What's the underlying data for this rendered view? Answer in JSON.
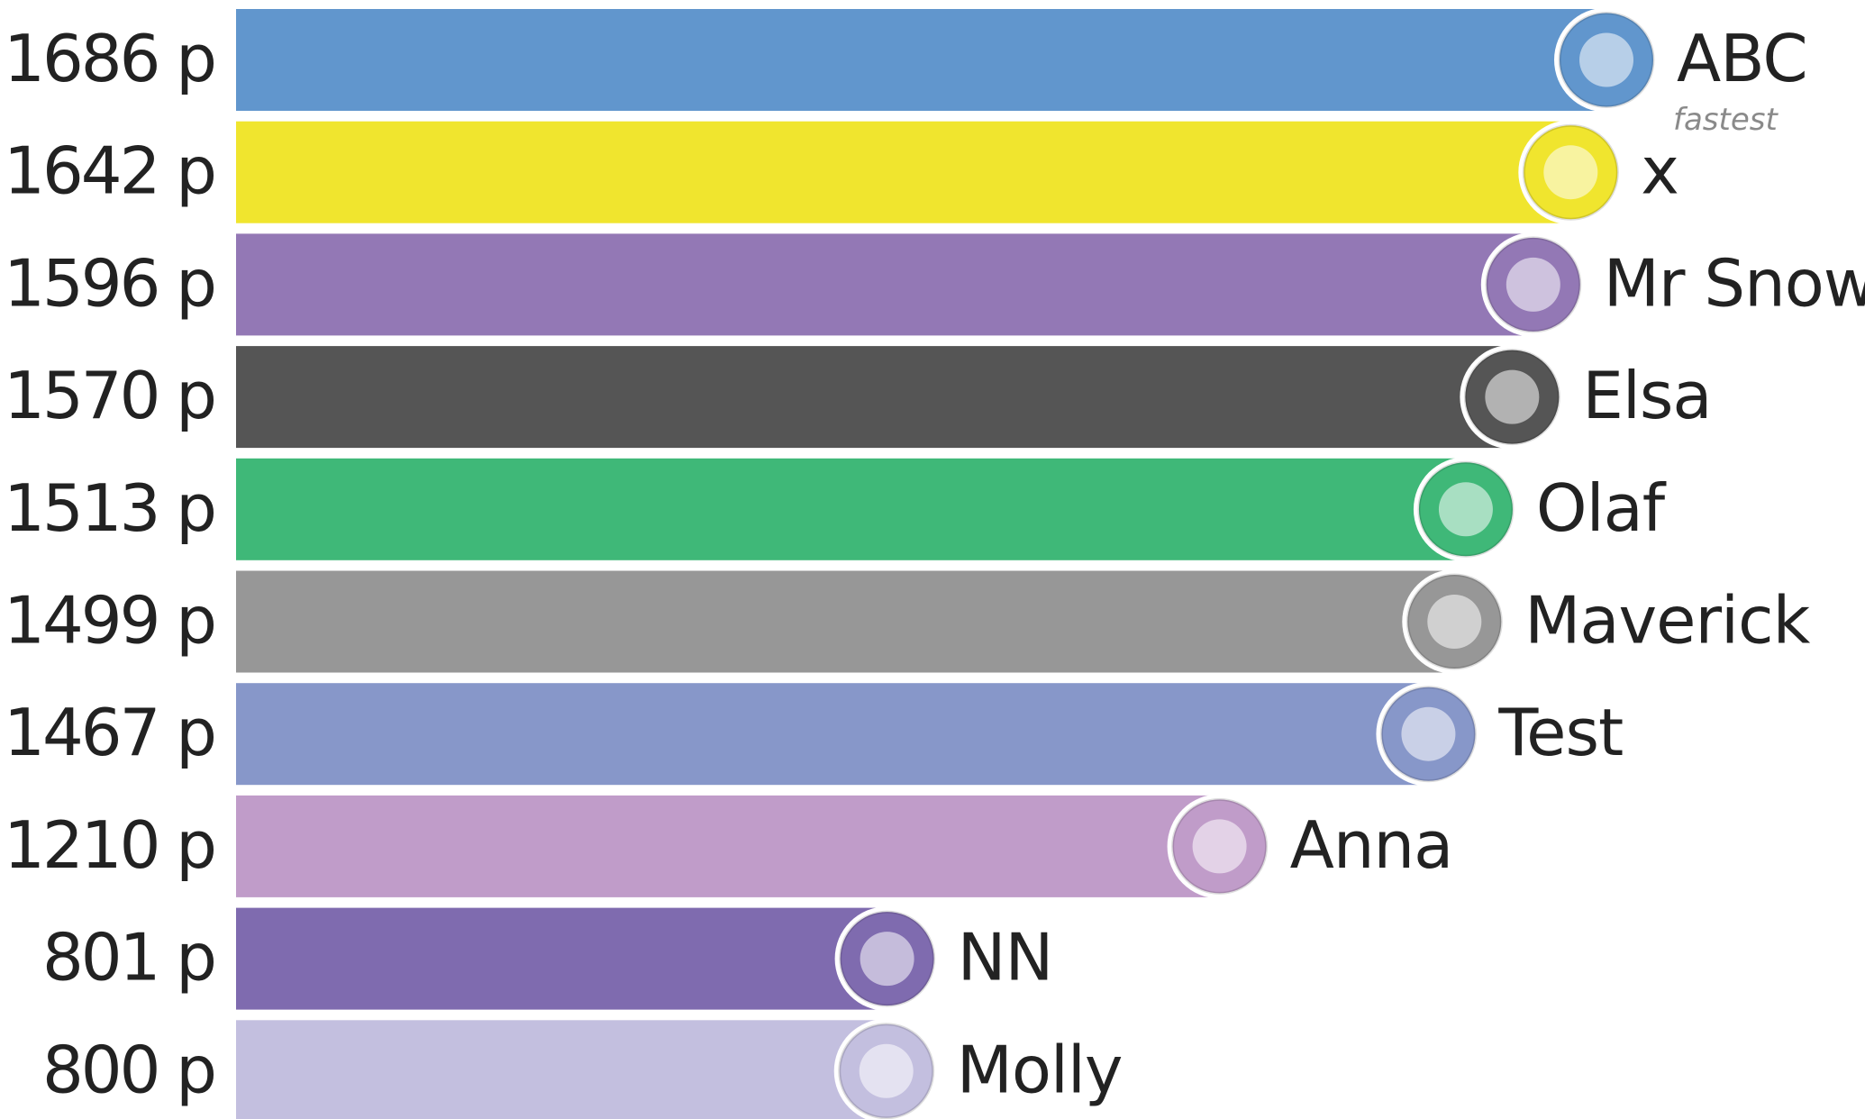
{
  "chart_data": {
    "type": "bar",
    "orientation": "horizontal",
    "categories": [
      "ABC",
      "x",
      "Mr Snow",
      "Elsa",
      "Olaf",
      "Maverick",
      "Test",
      "Anna",
      "NN",
      "Molly"
    ],
    "values": [
      1686,
      1642,
      1596,
      1570,
      1513,
      1499,
      1467,
      1210,
      801,
      800
    ],
    "value_labels": [
      "1686 p",
      "1642 p",
      "1596 p",
      "1570 p",
      "1513 p",
      "1499 p",
      "1467 p",
      "1210 p",
      "801 p",
      "800 p"
    ],
    "colors": [
      "#6196cd",
      "#f0e52e",
      "#9378b5",
      "#555555",
      "#3fb878",
      "#979797",
      "#8797c9",
      "#c09cc9",
      "#7f6baf",
      "#c3bfdf"
    ],
    "annotation": "fastest"
  }
}
